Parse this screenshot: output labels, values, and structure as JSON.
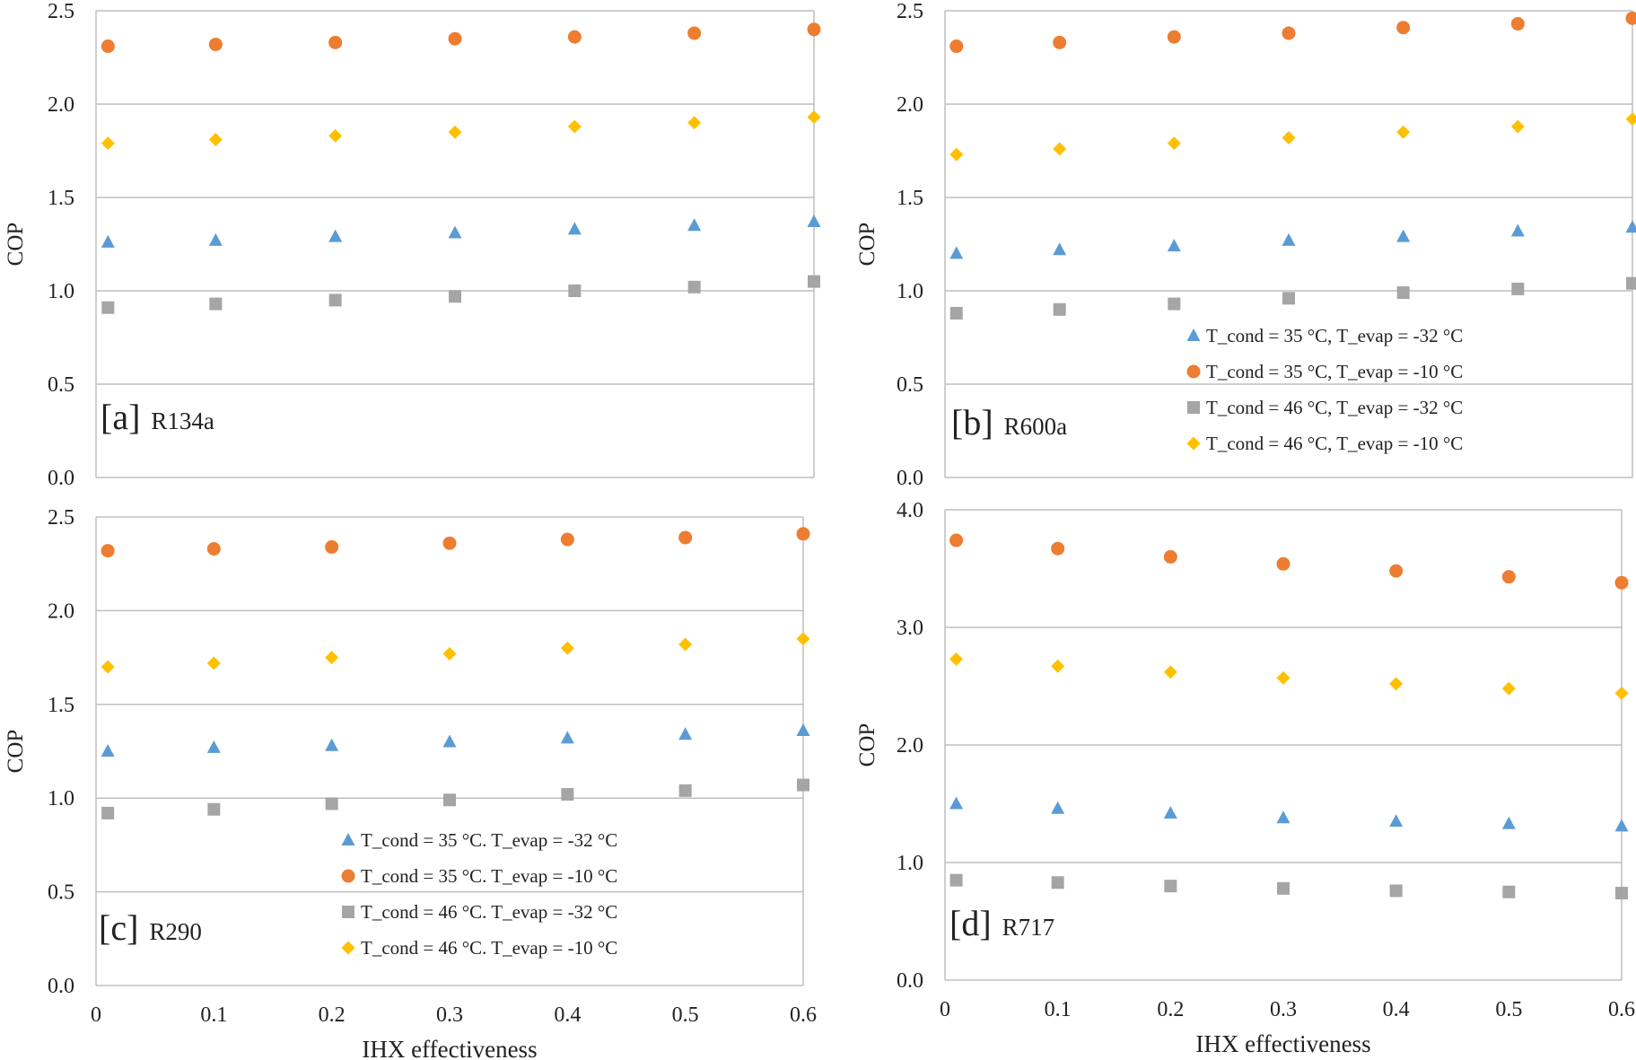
{
  "figure": {
    "xlabel": "IHX effectiveness",
    "colors": {
      "s1": "#5B9BD5",
      "s2": "#ED7D31",
      "s3": "#A5A5A5",
      "s4": "#FFC000",
      "grid": "#BFBFBF",
      "axis": "#BFBFBF"
    },
    "markers": {
      "s1": "triangle",
      "s2": "circle",
      "s3": "square",
      "s4": "diamond"
    }
  },
  "chart_data": [
    {
      "id": "a",
      "type": "scatter",
      "panel_label": "[a]",
      "refrigerant": "R134a",
      "ylabel": "COP",
      "xlabel": "",
      "xlim": [
        0,
        0.6
      ],
      "ylim": [
        0,
        2.5
      ],
      "yticks": [
        "0.0",
        "0.5",
        "1.0",
        "1.5",
        "2.0",
        "2.5"
      ],
      "xticks": [],
      "grid": true,
      "legend_position": "none",
      "x": [
        0.01,
        0.1,
        0.2,
        0.3,
        0.4,
        0.5,
        0.6
      ],
      "series": [
        {
          "key": "s1",
          "name": "",
          "values": [
            1.26,
            1.27,
            1.29,
            1.31,
            1.33,
            1.35,
            1.37
          ]
        },
        {
          "key": "s2",
          "name": "",
          "values": [
            2.31,
            2.32,
            2.33,
            2.35,
            2.36,
            2.38,
            2.4
          ]
        },
        {
          "key": "s3",
          "name": "",
          "values": [
            0.91,
            0.93,
            0.95,
            0.97,
            1.0,
            1.02,
            1.05
          ]
        },
        {
          "key": "s4",
          "name": "",
          "values": [
            1.79,
            1.81,
            1.83,
            1.85,
            1.88,
            1.9,
            1.93
          ]
        }
      ]
    },
    {
      "id": "b",
      "type": "scatter",
      "panel_label": "[b]",
      "refrigerant": "R600a",
      "ylabel": "COP",
      "xlabel": "",
      "xlim": [
        0,
        0.6
      ],
      "ylim": [
        0,
        2.5
      ],
      "yticks": [
        "0.0",
        "0.5",
        "1.0",
        "1.5",
        "2.0",
        "2.5"
      ],
      "xticks": [],
      "grid": true,
      "legend_position": "center-right",
      "x": [
        0.01,
        0.1,
        0.2,
        0.3,
        0.4,
        0.5,
        0.6
      ],
      "series": [
        {
          "key": "s1",
          "name": "T_cond = 35 °C, T_evap = -32 °C",
          "values": [
            1.2,
            1.22,
            1.24,
            1.27,
            1.29,
            1.32,
            1.34
          ]
        },
        {
          "key": "s2",
          "name": "T_cond = 35 °C, T_evap = -10 °C",
          "values": [
            2.31,
            2.33,
            2.36,
            2.38,
            2.41,
            2.43,
            2.46
          ]
        },
        {
          "key": "s3",
          "name": "T_cond = 46 °C, T_evap = -32 °C",
          "values": [
            0.88,
            0.9,
            0.93,
            0.96,
            0.99,
            1.01,
            1.04
          ]
        },
        {
          "key": "s4",
          "name": "T_cond = 46 °C, T_evap = -10 °C",
          "values": [
            1.73,
            1.76,
            1.79,
            1.82,
            1.85,
            1.88,
            1.92
          ]
        }
      ]
    },
    {
      "id": "c",
      "type": "scatter",
      "panel_label": "[c]",
      "refrigerant": "R290",
      "ylabel": "COP",
      "xlabel": "IHX effectiveness",
      "xlim": [
        0,
        0.6
      ],
      "ylim": [
        0,
        2.5
      ],
      "yticks": [
        "0.0",
        "0.5",
        "1.0",
        "1.5",
        "2.0",
        "2.5"
      ],
      "xticks": [
        "0",
        "0.1",
        "0.2",
        "0.3",
        "0.4",
        "0.5",
        "0.6"
      ],
      "grid": true,
      "legend_position": "bottom-center",
      "x": [
        0.01,
        0.1,
        0.2,
        0.3,
        0.4,
        0.5,
        0.6
      ],
      "series": [
        {
          "key": "s1",
          "name": "T_cond = 35 °C. T_evap = -32 °C",
          "values": [
            1.25,
            1.27,
            1.28,
            1.3,
            1.32,
            1.34,
            1.36
          ]
        },
        {
          "key": "s2",
          "name": "T_cond = 35 °C. T_evap = -10 °C",
          "values": [
            2.32,
            2.33,
            2.34,
            2.36,
            2.38,
            2.39,
            2.41
          ]
        },
        {
          "key": "s3",
          "name": "T_cond = 46 °C. T_evap = -32 °C",
          "values": [
            0.92,
            0.94,
            0.97,
            0.99,
            1.02,
            1.04,
            1.07
          ]
        },
        {
          "key": "s4",
          "name": "T_cond = 46 °C. T_evap = -10 °C",
          "values": [
            1.7,
            1.72,
            1.75,
            1.77,
            1.8,
            1.82,
            1.85
          ]
        }
      ]
    },
    {
      "id": "d",
      "type": "scatter",
      "panel_label": "[d]",
      "refrigerant": "R717",
      "ylabel": "COP",
      "xlabel": "IHX effectiveness",
      "xlim": [
        0,
        0.6
      ],
      "ylim": [
        0,
        4.0
      ],
      "yticks": [
        "0.0",
        "1.0",
        "2.0",
        "3.0",
        "4.0"
      ],
      "xticks": [
        "0",
        "0.1",
        "0.2",
        "0.3",
        "0.4",
        "0.5",
        "0.6"
      ],
      "grid": true,
      "legend_position": "none",
      "x": [
        0.01,
        0.1,
        0.2,
        0.3,
        0.4,
        0.5,
        0.6
      ],
      "series": [
        {
          "key": "s1",
          "name": "",
          "values": [
            1.5,
            1.46,
            1.42,
            1.38,
            1.35,
            1.33,
            1.31
          ]
        },
        {
          "key": "s2",
          "name": "",
          "values": [
            3.74,
            3.67,
            3.6,
            3.54,
            3.48,
            3.43,
            3.38
          ]
        },
        {
          "key": "s3",
          "name": "",
          "values": [
            0.85,
            0.83,
            0.8,
            0.78,
            0.76,
            0.75,
            0.74
          ]
        },
        {
          "key": "s4",
          "name": "",
          "values": [
            2.73,
            2.67,
            2.62,
            2.57,
            2.52,
            2.48,
            2.44
          ]
        }
      ]
    }
  ]
}
